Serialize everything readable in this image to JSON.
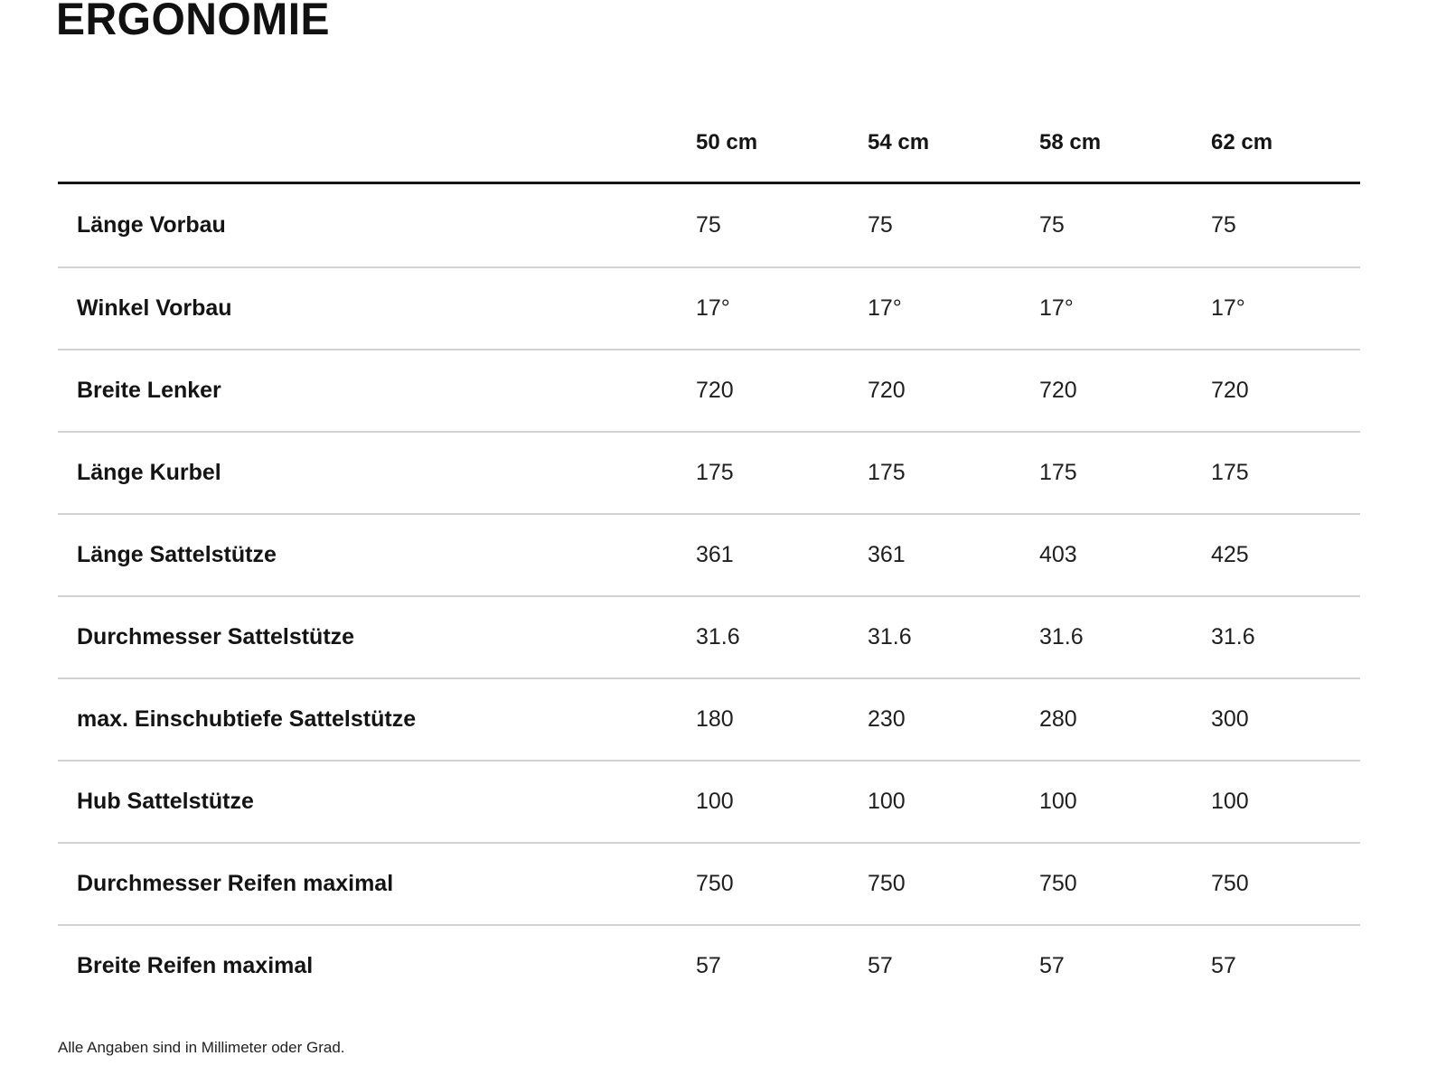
{
  "page": {
    "title": "ERGONOMIE",
    "footnote": "Alle Angaben sind in Millimeter oder Grad."
  },
  "table": {
    "columns": [
      "50 cm",
      "54 cm",
      "58 cm",
      "62 cm"
    ],
    "rows": [
      {
        "label": "Länge Vorbau",
        "values": [
          "75",
          "75",
          "75",
          "75"
        ]
      },
      {
        "label": "Winkel Vorbau",
        "values": [
          "17°",
          "17°",
          "17°",
          "17°"
        ]
      },
      {
        "label": "Breite Lenker",
        "values": [
          "720",
          "720",
          "720",
          "720"
        ]
      },
      {
        "label": "Länge Kurbel",
        "values": [
          "175",
          "175",
          "175",
          "175"
        ]
      },
      {
        "label": "Länge Sattelstütze",
        "values": [
          "361",
          "361",
          "403",
          "425"
        ]
      },
      {
        "label": "Durchmesser Sattelstütze",
        "values": [
          "31.6",
          "31.6",
          "31.6",
          "31.6"
        ]
      },
      {
        "label": "max. Einschubtiefe Sattelstütze",
        "values": [
          "180",
          "230",
          "280",
          "300"
        ]
      },
      {
        "label": "Hub Sattelstütze",
        "values": [
          "100",
          "100",
          "100",
          "100"
        ]
      },
      {
        "label": "Durchmesser Reifen maximal",
        "values": [
          "750",
          "750",
          "750",
          "750"
        ]
      },
      {
        "label": "Breite Reifen maximal",
        "values": [
          "57",
          "57",
          "57",
          "57"
        ]
      }
    ]
  }
}
